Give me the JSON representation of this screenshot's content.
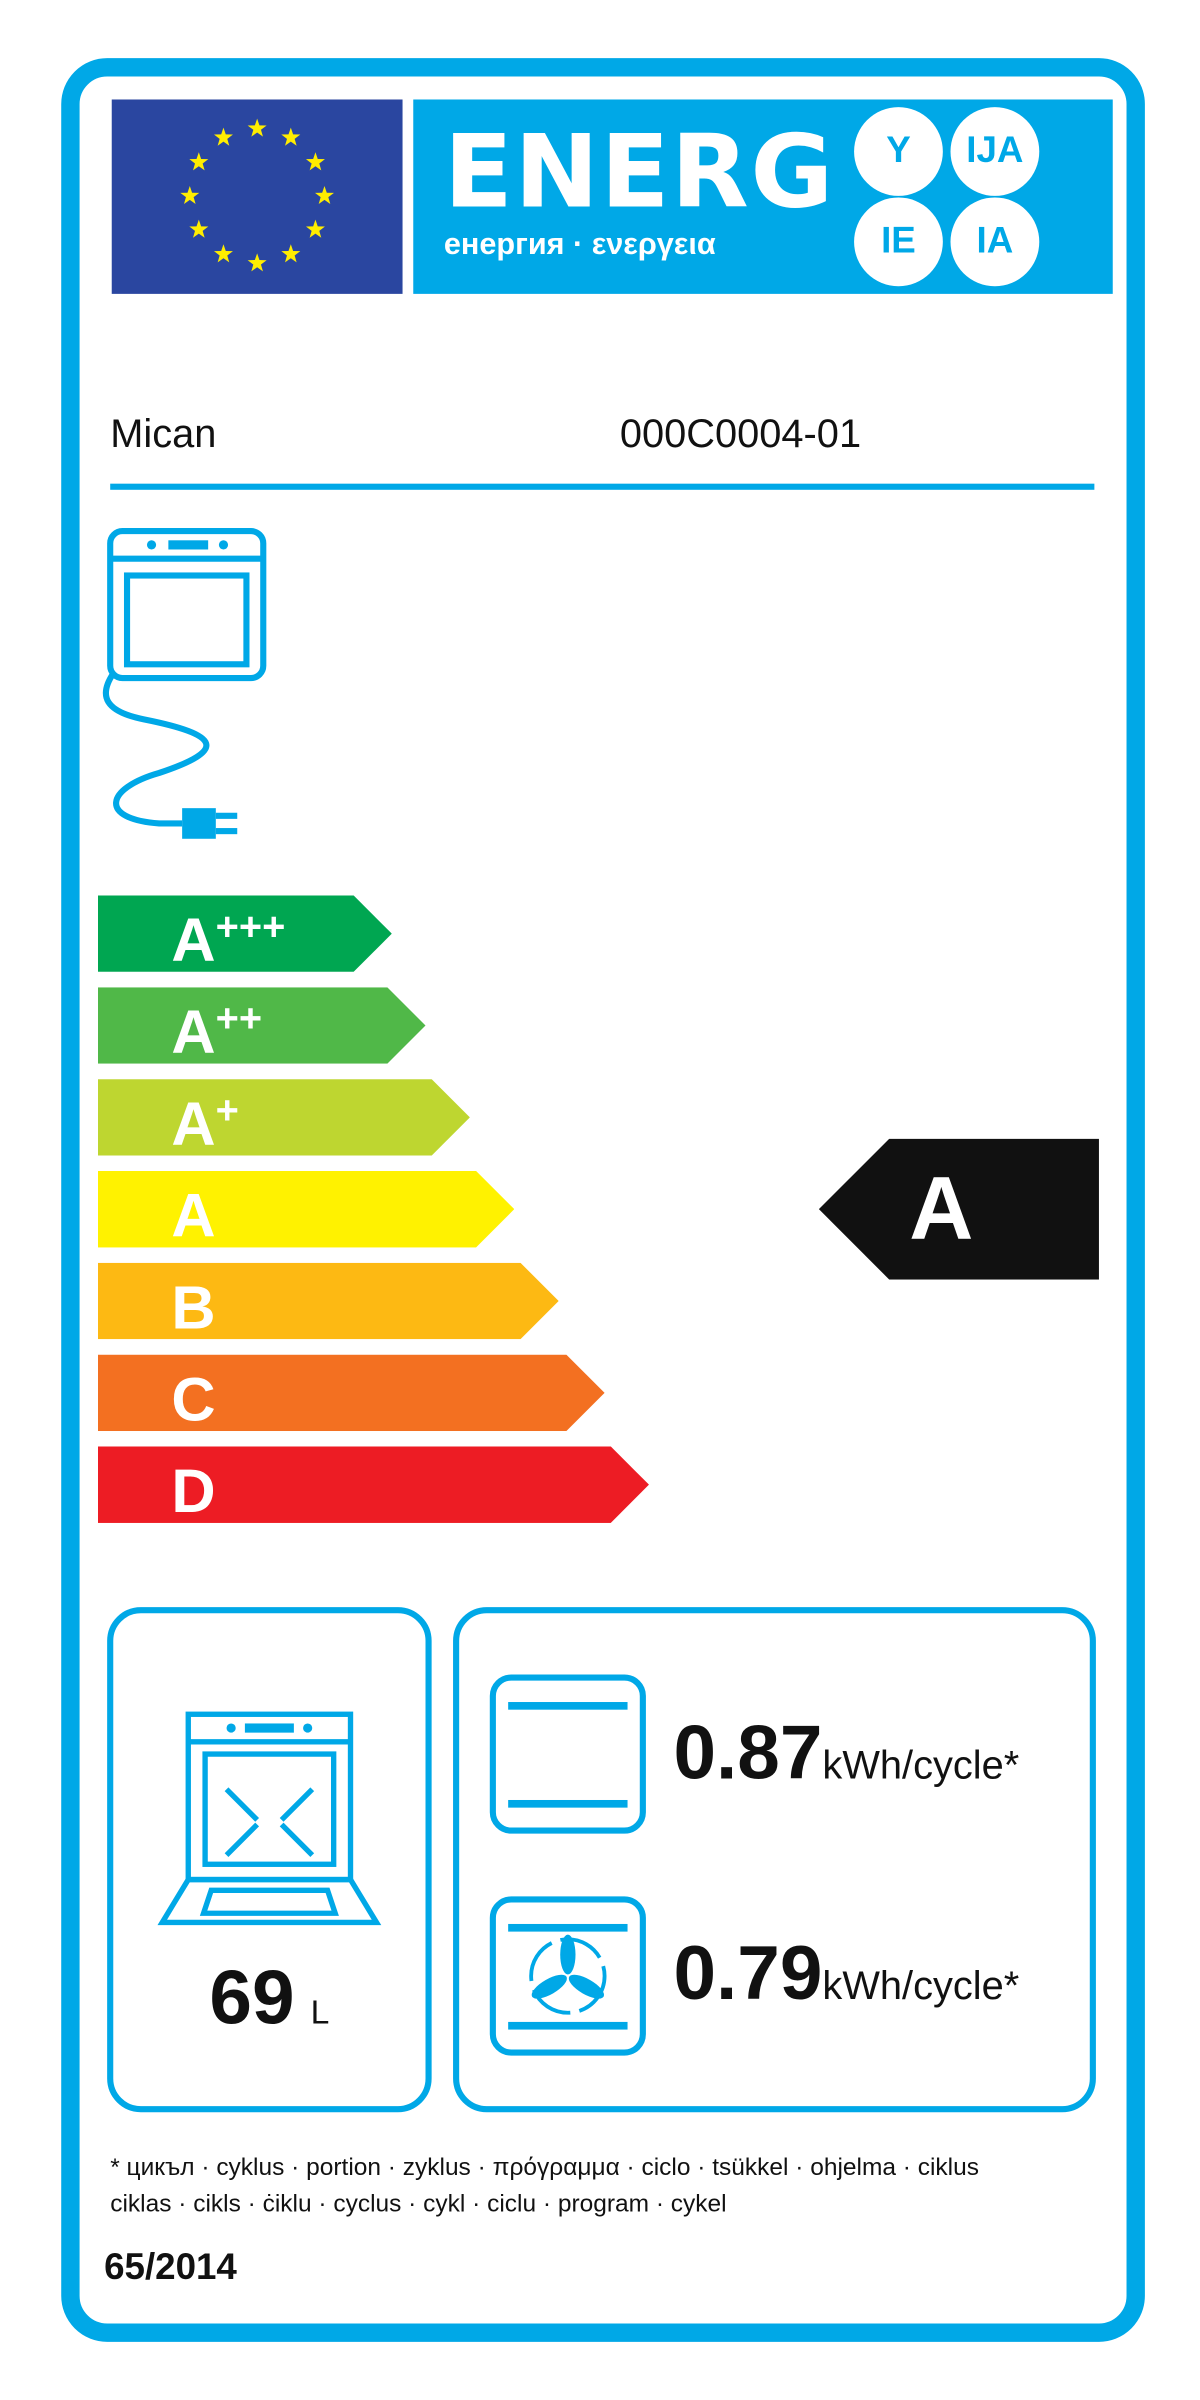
{
  "header": {
    "title": "ENERG",
    "subtitle": "енергия · ενεργεια",
    "language_suffixes": [
      "Y",
      "IJA",
      "IE",
      "IA"
    ],
    "flag_icon": "eu-flag-icon"
  },
  "product": {
    "supplier": "Mican",
    "model": "000C0004-01",
    "appliance_icon": "electric-oven-icon"
  },
  "scale": {
    "classes": [
      {
        "letter": "A",
        "plus": "+++",
        "color": "#00a651"
      },
      {
        "letter": "A",
        "plus": "++",
        "color": "#50b848"
      },
      {
        "letter": "A",
        "plus": "+",
        "color": "#bed630"
      },
      {
        "letter": "A",
        "plus": "",
        "color": "#fff200"
      },
      {
        "letter": "B",
        "plus": "",
        "color": "#fdb913"
      },
      {
        "letter": "C",
        "plus": "",
        "color": "#f37021"
      },
      {
        "letter": "D",
        "plus": "",
        "color": "#ed1c24"
      }
    ],
    "rating": "A",
    "rating_color": "#111111"
  },
  "volume": {
    "value": "69",
    "unit": "L",
    "icon": "oven-cavity-volume-icon"
  },
  "consumption": [
    {
      "value": "0.87",
      "unit": "kWh/cycle*",
      "icon": "conventional-heating-icon"
    },
    {
      "value": "0.79",
      "unit": "kWh/cycle*",
      "icon": "fan-forced-heating-icon"
    }
  ],
  "footnote": {
    "line1": "* цикъл · cyklus · portion · zyklus · πρόγραμμα · ciclo · tsükkel · ohjelma · ciklus",
    "line2": "ciklas · cikls · ċiklu · cyclus · cykl · ciclu · program · cykel"
  },
  "regulation": "65/2014",
  "colors": {
    "brand_blue": "#00a8e7",
    "flag_blue": "#2a46a0",
    "star_yellow": "#ffed00"
  }
}
